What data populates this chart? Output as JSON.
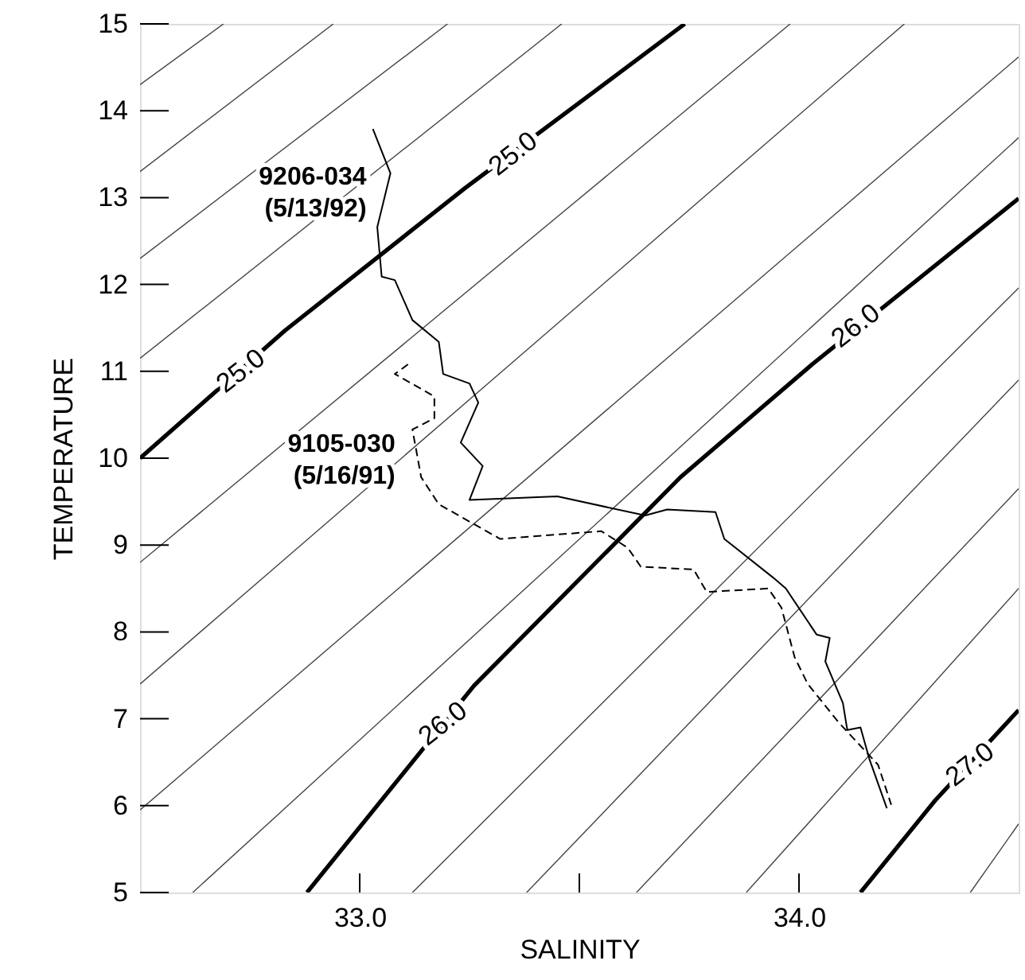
{
  "chart_data": {
    "type": "line",
    "xlabel": "SALINITY",
    "ylabel": "TEMPERATURE",
    "xlim": [
      32.5,
      34.5
    ],
    "ylim": [
      5,
      15
    ],
    "xticks": [
      {
        "value": 33,
        "label": "33.0"
      },
      {
        "value": 33.5,
        "label": null
      },
      {
        "value": 34,
        "label": "34.0"
      }
    ],
    "yticks": [
      5,
      6,
      7,
      8,
      9,
      10,
      11,
      12,
      13,
      14,
      15
    ],
    "grid": false,
    "marker": "none",
    "annotations": [
      {
        "text": "25.0",
        "x": 33.35,
        "y": 13.5
      },
      {
        "text": "25.0",
        "x": 32.73,
        "y": 11.0
      },
      {
        "text": "26.0",
        "x": 34.13,
        "y": 11.52
      },
      {
        "text": "26.0",
        "x": 33.19,
        "y": 6.94
      },
      {
        "text": "27.0",
        "x": 34.39,
        "y": 6.47
      }
    ],
    "series": [
      {
        "color": "#444444",
        "x": [
          32.5,
          32.69
        ],
        "values": [
          14.3,
          15
        ]
      },
      {
        "color": "#444444",
        "x": [
          32.5,
          32.94
        ],
        "values": [
          13.3,
          15
        ]
      },
      {
        "color": "#444444",
        "x": [
          32.5,
          33.2
        ],
        "values": [
          12.3,
          15
        ]
      },
      {
        "color": "#444444",
        "x": [
          32.5,
          33.46
        ],
        "values": [
          11.15,
          15
        ]
      },
      {
        "color": "#000000",
        "x": [
          32.5,
          32.83,
          33.24,
          33.74
        ],
        "values": [
          10.0,
          11.47,
          13.11,
          15
        ]
      },
      {
        "color": "#444444",
        "x": [
          32.5,
          33.98
        ],
        "values": [
          8.8,
          15
        ]
      },
      {
        "color": "#444444",
        "x": [
          32.5,
          34.24
        ],
        "values": [
          7.4,
          15
        ]
      },
      {
        "color": "#444444",
        "x": [
          32.5,
          34.5
        ],
        "values": [
          5.95,
          14.62
        ]
      },
      {
        "color": "#444444",
        "x": [
          32.62,
          34.5
        ],
        "values": [
          5,
          13.69
        ]
      },
      {
        "color": "#000000",
        "x": [
          32.88,
          33.26,
          33.73,
          34.03,
          34.5
        ],
        "values": [
          5,
          7.38,
          9.78,
          11.08,
          12.99
        ]
      },
      {
        "color": "#444444",
        "x": [
          33.12,
          34.5
        ],
        "values": [
          5,
          11.96
        ]
      },
      {
        "color": "#444444",
        "x": [
          33.38,
          34.5
        ],
        "values": [
          5,
          10.9
        ]
      },
      {
        "color": "#444444",
        "x": [
          33.63,
          34.5
        ],
        "values": [
          5,
          9.65
        ]
      },
      {
        "color": "#444444",
        "x": [
          33.88,
          34.5
        ],
        "values": [
          5,
          8.5
        ]
      },
      {
        "color": "#000000",
        "x": [
          34.14,
          34.31,
          34.5
        ],
        "values": [
          5,
          6.06,
          7.1
        ]
      },
      {
        "color": "#444444",
        "x": [
          34.39,
          34.5
        ],
        "values": [
          5,
          5.79
        ]
      },
      {
        "name": "9206-034 (5/13/92)",
        "color": "#000000",
        "line_style": "solid",
        "x": [
          33.03,
          33.07,
          33.04,
          33.05,
          33.08,
          33.12,
          33.18,
          33.19,
          33.25,
          33.27,
          33.23,
          33.28,
          33.25,
          33.45,
          33.65,
          33.7,
          33.81,
          33.83,
          33.94,
          33.97,
          34.04,
          34.07,
          34.06,
          34.1,
          34.11,
          34.14,
          34.16,
          34.2
        ],
        "values": [
          13.79,
          13.28,
          12.66,
          12.09,
          12.05,
          11.59,
          11.34,
          10.97,
          10.86,
          10.64,
          10.18,
          9.91,
          9.52,
          9.56,
          9.34,
          9.41,
          9.38,
          9.07,
          8.63,
          8.5,
          7.97,
          7.93,
          7.66,
          7.18,
          6.87,
          6.9,
          6.54,
          5.97
        ]
      },
      {
        "name": "9105-030 (5/16/91)",
        "color": "#000000",
        "line_style": "dashed",
        "x": [
          33.11,
          33.08,
          33.17,
          33.17,
          33.12,
          33.14,
          33.18,
          33.32,
          33.55,
          33.61,
          33.64,
          33.76,
          33.79,
          33.93,
          33.96,
          33.99,
          34.02,
          34.09,
          34.18,
          34.21
        ],
        "values": [
          11.08,
          10.97,
          10.71,
          10.46,
          10.33,
          9.78,
          9.47,
          9.07,
          9.16,
          8.97,
          8.75,
          8.72,
          8.46,
          8.5,
          8.28,
          7.71,
          7.4,
          6.96,
          6.47,
          6.01
        ]
      }
    ]
  }
}
